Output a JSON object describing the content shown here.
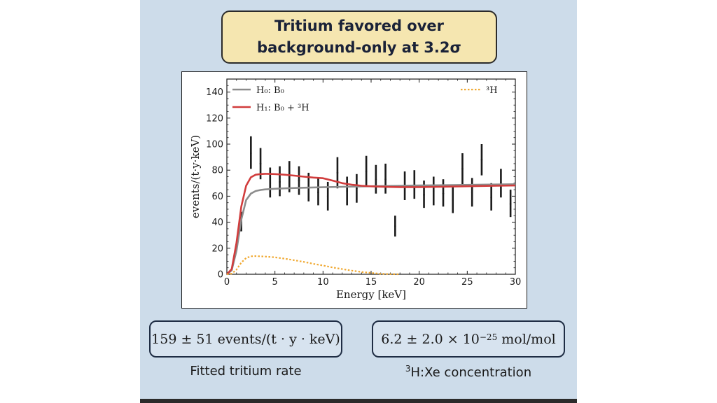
{
  "title": {
    "line1": "Tritium favored over",
    "line2": "background-only at 3.2σ"
  },
  "colors": {
    "h0": "#8c8c8c",
    "h1": "#d13c3c",
    "tritium": "#f0a830",
    "data": "#1a1a1a"
  },
  "chart_data": {
    "type": "line",
    "xlabel": "Energy [keV]",
    "ylabel": "events/(t·y·keV)",
    "xlim": [
      0,
      30
    ],
    "ylim": [
      0,
      150
    ],
    "xticks": [
      "0",
      "5",
      "10",
      "15",
      "20",
      "25",
      "30"
    ],
    "yticks": [
      "0",
      "20",
      "40",
      "60",
      "80",
      "100",
      "120",
      "140"
    ],
    "legend": {
      "h0": "H₀: B₀",
      "h1": "H₁: B₀ + ³H",
      "tritium": "³H"
    },
    "data_points": [
      {
        "x": 1.5,
        "y": 40,
        "lo": 33,
        "hi": 48
      },
      {
        "x": 2.5,
        "y": 93,
        "lo": 81,
        "hi": 106
      },
      {
        "x": 3.5,
        "y": 85,
        "lo": 73,
        "hi": 97
      },
      {
        "x": 4.5,
        "y": 70,
        "lo": 59,
        "hi": 82
      },
      {
        "x": 5.5,
        "y": 71,
        "lo": 60,
        "hi": 83
      },
      {
        "x": 6.5,
        "y": 75,
        "lo": 63,
        "hi": 87
      },
      {
        "x": 7.5,
        "y": 72,
        "lo": 61,
        "hi": 83
      },
      {
        "x": 8.5,
        "y": 67,
        "lo": 56,
        "hi": 78
      },
      {
        "x": 9.5,
        "y": 63,
        "lo": 53,
        "hi": 74
      },
      {
        "x": 10.5,
        "y": 60,
        "lo": 49,
        "hi": 71
      },
      {
        "x": 11.5,
        "y": 78,
        "lo": 66,
        "hi": 90
      },
      {
        "x": 12.5,
        "y": 64,
        "lo": 53,
        "hi": 75
      },
      {
        "x": 13.5,
        "y": 66,
        "lo": 55,
        "hi": 77
      },
      {
        "x": 14.5,
        "y": 79,
        "lo": 67,
        "hi": 91
      },
      {
        "x": 15.5,
        "y": 73,
        "lo": 62,
        "hi": 84
      },
      {
        "x": 16.5,
        "y": 73,
        "lo": 62,
        "hi": 85
      },
      {
        "x": 17.5,
        "y": 37,
        "lo": 29,
        "hi": 45
      },
      {
        "x": 18.5,
        "y": 68,
        "lo": 57,
        "hi": 79
      },
      {
        "x": 19.5,
        "y": 69,
        "lo": 58,
        "hi": 80
      },
      {
        "x": 20.5,
        "y": 61,
        "lo": 51,
        "hi": 72
      },
      {
        "x": 21.5,
        "y": 64,
        "lo": 53,
        "hi": 75
      },
      {
        "x": 22.5,
        "y": 62,
        "lo": 52,
        "hi": 73
      },
      {
        "x": 23.5,
        "y": 57,
        "lo": 47,
        "hi": 68
      },
      {
        "x": 24.5,
        "y": 81,
        "lo": 69,
        "hi": 93
      },
      {
        "x": 25.5,
        "y": 63,
        "lo": 52,
        "hi": 74
      },
      {
        "x": 26.5,
        "y": 88,
        "lo": 76,
        "hi": 100
      },
      {
        "x": 27.5,
        "y": 59,
        "lo": 49,
        "hi": 70
      },
      {
        "x": 28.5,
        "y": 70,
        "lo": 59,
        "hi": 81
      },
      {
        "x": 29.5,
        "y": 54,
        "lo": 44,
        "hi": 65
      }
    ],
    "series": [
      {
        "key": "h0",
        "x": [
          0,
          0.5,
          1.0,
          1.5,
          2.0,
          2.5,
          3.0,
          3.5,
          4.0,
          5,
          6,
          7,
          8,
          9,
          10,
          12,
          14,
          16,
          18,
          20,
          22,
          24,
          26,
          28,
          30
        ],
        "y": [
          0,
          3,
          18,
          42,
          57,
          62,
          64,
          64.8,
          65.2,
          65.7,
          66,
          66.3,
          66.5,
          66.7,
          66.9,
          67.2,
          67.5,
          67.8,
          68,
          68.2,
          68.4,
          68.6,
          68.8,
          69,
          69.2
        ]
      },
      {
        "key": "h1",
        "x": [
          0,
          0.5,
          1.0,
          1.5,
          2.0,
          2.5,
          3.0,
          3.5,
          4.0,
          5,
          6,
          7,
          8,
          9,
          10,
          11,
          12,
          13,
          14,
          15,
          16,
          17,
          18,
          20,
          22,
          24,
          26,
          28,
          30
        ],
        "y": [
          0,
          4,
          24,
          52,
          68,
          74.5,
          76.5,
          77,
          77.2,
          77,
          76.5,
          75.8,
          75,
          74.3,
          73.8,
          72,
          70,
          68.8,
          68,
          67.6,
          67.3,
          67.1,
          67,
          67,
          67.2,
          67.5,
          67.8,
          68,
          68.2
        ]
      },
      {
        "key": "tritium",
        "x": [
          0,
          0.5,
          1.0,
          1.5,
          2.0,
          2.5,
          3.0,
          4,
          5,
          6,
          7,
          8,
          9,
          10,
          11,
          12,
          13,
          14,
          15,
          16,
          17,
          18
        ],
        "y": [
          0,
          0.5,
          3.5,
          9,
          12.5,
          13.8,
          14,
          13.6,
          13,
          12,
          10.8,
          9.5,
          8,
          6.7,
          5.2,
          4,
          2.8,
          1.8,
          1,
          0.4,
          0.1,
          0
        ]
      }
    ]
  },
  "rate_box": {
    "value": "159 ± 51 events/(t · y · keV)",
    "caption": "Fitted tritium rate"
  },
  "conc_box": {
    "value": "6.2 ± 2.0 × 10",
    "exponent": "−25",
    "unit": " mol/mol",
    "caption_sup": "3",
    "caption": "H:Xe concentration"
  }
}
